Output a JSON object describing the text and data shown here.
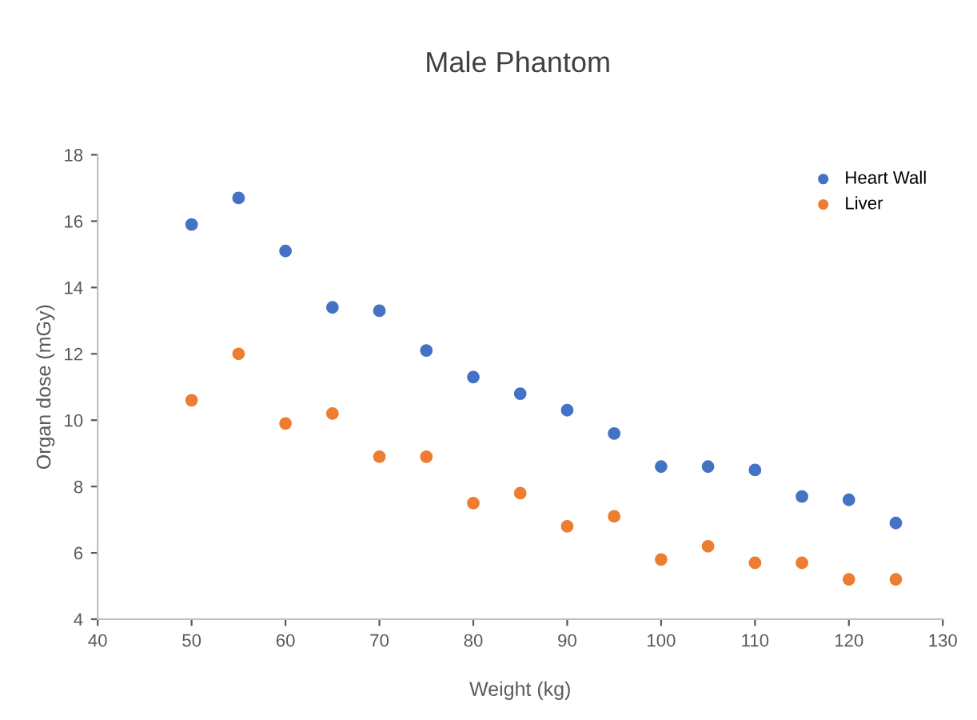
{
  "chart_data": {
    "type": "scatter",
    "title": "Male Phantom",
    "xlabel": "Weight (kg)",
    "ylabel": "Organ dose (mGy)",
    "x": [
      50,
      55,
      60,
      65,
      70,
      75,
      80,
      85,
      90,
      95,
      100,
      105,
      110,
      115,
      120,
      125
    ],
    "series": [
      {
        "name": "Heart Wall",
        "color": "#4472c4",
        "values": [
          15.9,
          16.7,
          15.1,
          13.4,
          13.3,
          12.1,
          11.3,
          10.8,
          10.3,
          9.6,
          8.6,
          8.6,
          8.5,
          7.7,
          7.6,
          6.9
        ]
      },
      {
        "name": "Liver",
        "color": "#ed7d31",
        "values": [
          10.6,
          12.0,
          9.9,
          10.2,
          8.9,
          8.9,
          7.5,
          7.8,
          6.8,
          7.1,
          5.8,
          6.2,
          5.7,
          5.7,
          5.2,
          5.2
        ]
      }
    ],
    "xlim": [
      40,
      130
    ],
    "xticks": [
      40,
      50,
      60,
      70,
      80,
      90,
      100,
      110,
      120,
      130
    ],
    "ylim": [
      4,
      18
    ],
    "yticks": [
      4,
      6,
      8,
      10,
      12,
      14,
      16,
      18
    ],
    "grid": false,
    "legend": "top right",
    "marker": "circle"
  }
}
